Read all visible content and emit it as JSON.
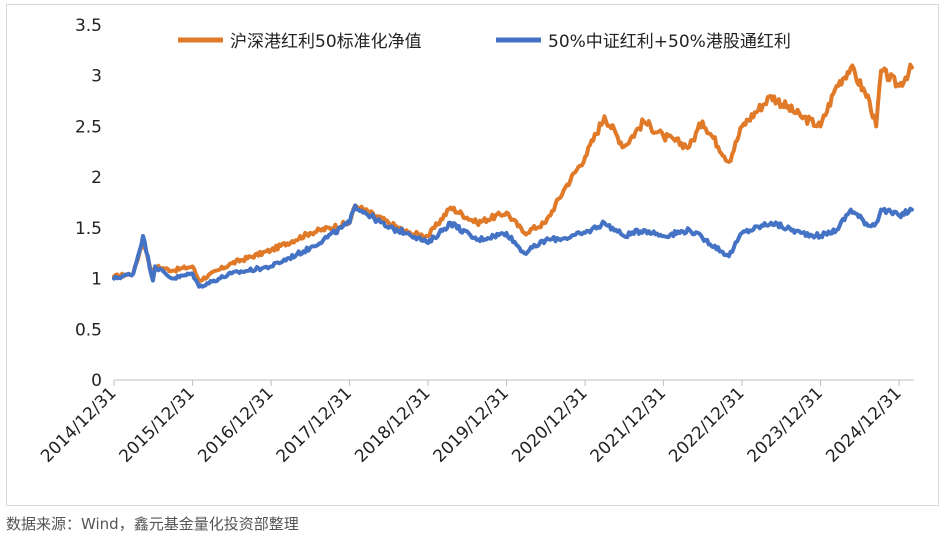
{
  "chart_data": {
    "type": "line",
    "ylim": [
      0,
      3.5
    ],
    "y_ticks": [
      "0",
      "0.5",
      "1",
      "1.5",
      "2",
      "2.5",
      "3",
      "3.5"
    ],
    "x_ticks": [
      "2014/12/31",
      "2015/12/31",
      "2016/12/31",
      "2017/12/31",
      "2018/12/31",
      "2019/12/31",
      "2020/12/31",
      "2021/12/31",
      "2022/12/31",
      "2023/12/31",
      "2024/12/31"
    ],
    "grid": false,
    "legend_position": "top",
    "series": [
      {
        "name": "沪深港红利50标准化净值",
        "color": "#E07A28",
        "x": [
          "2014/12/31",
          "2015/03/31",
          "2015/05/15",
          "2015/06/30",
          "2015/07/10",
          "2015/09/30",
          "2015/12/31",
          "2016/01/31",
          "2016/06/30",
          "2016/12/31",
          "2017/06/30",
          "2017/12/31",
          "2018/01/26",
          "2018/06/30",
          "2018/09/30",
          "2018/12/31",
          "2019/04/15",
          "2019/08/15",
          "2019/12/31",
          "2020/03/23",
          "2020/06/30",
          "2020/09/30",
          "2020/12/31",
          "2021/03/31",
          "2021/06/30",
          "2021/09/30",
          "2021/12/31",
          "2022/04/30",
          "2022/06/30",
          "2022/10/31",
          "2022/12/31",
          "2023/05/15",
          "2023/09/30",
          "2023/12/31",
          "2024/03/15",
          "2024/05/20",
          "2024/08/15",
          "2024/09/15",
          "2024/10/08",
          "2024/12/31",
          "2025/02/28"
        ],
        "values": [
          1.02,
          1.05,
          1.38,
          1.02,
          1.12,
          1.08,
          1.12,
          0.98,
          1.15,
          1.28,
          1.45,
          1.55,
          1.72,
          1.55,
          1.45,
          1.42,
          1.7,
          1.55,
          1.65,
          1.45,
          1.55,
          1.9,
          2.2,
          2.6,
          2.3,
          2.55,
          2.4,
          2.3,
          2.55,
          2.15,
          2.5,
          2.8,
          2.6,
          2.5,
          2.9,
          3.08,
          2.75,
          2.5,
          3.05,
          2.9,
          3.08
        ]
      },
      {
        "name": "50%中证红利+50%港股通红利",
        "color": "#4472C4",
        "x": [
          "2014/12/31",
          "2015/03/31",
          "2015/05/15",
          "2015/06/30",
          "2015/07/10",
          "2015/09/30",
          "2015/12/31",
          "2016/01/31",
          "2016/06/30",
          "2016/12/31",
          "2017/06/30",
          "2017/12/31",
          "2018/01/26",
          "2018/06/30",
          "2018/09/30",
          "2018/12/31",
          "2019/04/15",
          "2019/08/15",
          "2019/12/31",
          "2020/03/23",
          "2020/06/30",
          "2020/09/30",
          "2020/12/31",
          "2021/03/31",
          "2021/06/30",
          "2021/09/30",
          "2021/12/31",
          "2022/04/30",
          "2022/06/30",
          "2022/10/31",
          "2022/12/31",
          "2023/05/15",
          "2023/09/30",
          "2023/12/31",
          "2024/03/15",
          "2024/05/20",
          "2024/08/15",
          "2024/09/15",
          "2024/10/08",
          "2024/12/31",
          "2025/02/28"
        ],
        "values": [
          1.0,
          1.05,
          1.42,
          0.98,
          1.12,
          1.0,
          1.05,
          0.92,
          1.05,
          1.12,
          1.3,
          1.55,
          1.72,
          1.5,
          1.45,
          1.35,
          1.55,
          1.38,
          1.45,
          1.25,
          1.38,
          1.4,
          1.45,
          1.55,
          1.42,
          1.48,
          1.42,
          1.48,
          1.4,
          1.22,
          1.45,
          1.55,
          1.45,
          1.42,
          1.48,
          1.68,
          1.52,
          1.55,
          1.68,
          1.62,
          1.68
        ]
      }
    ]
  },
  "source_note": "数据来源：Wind，鑫元基金量化投资部整理"
}
